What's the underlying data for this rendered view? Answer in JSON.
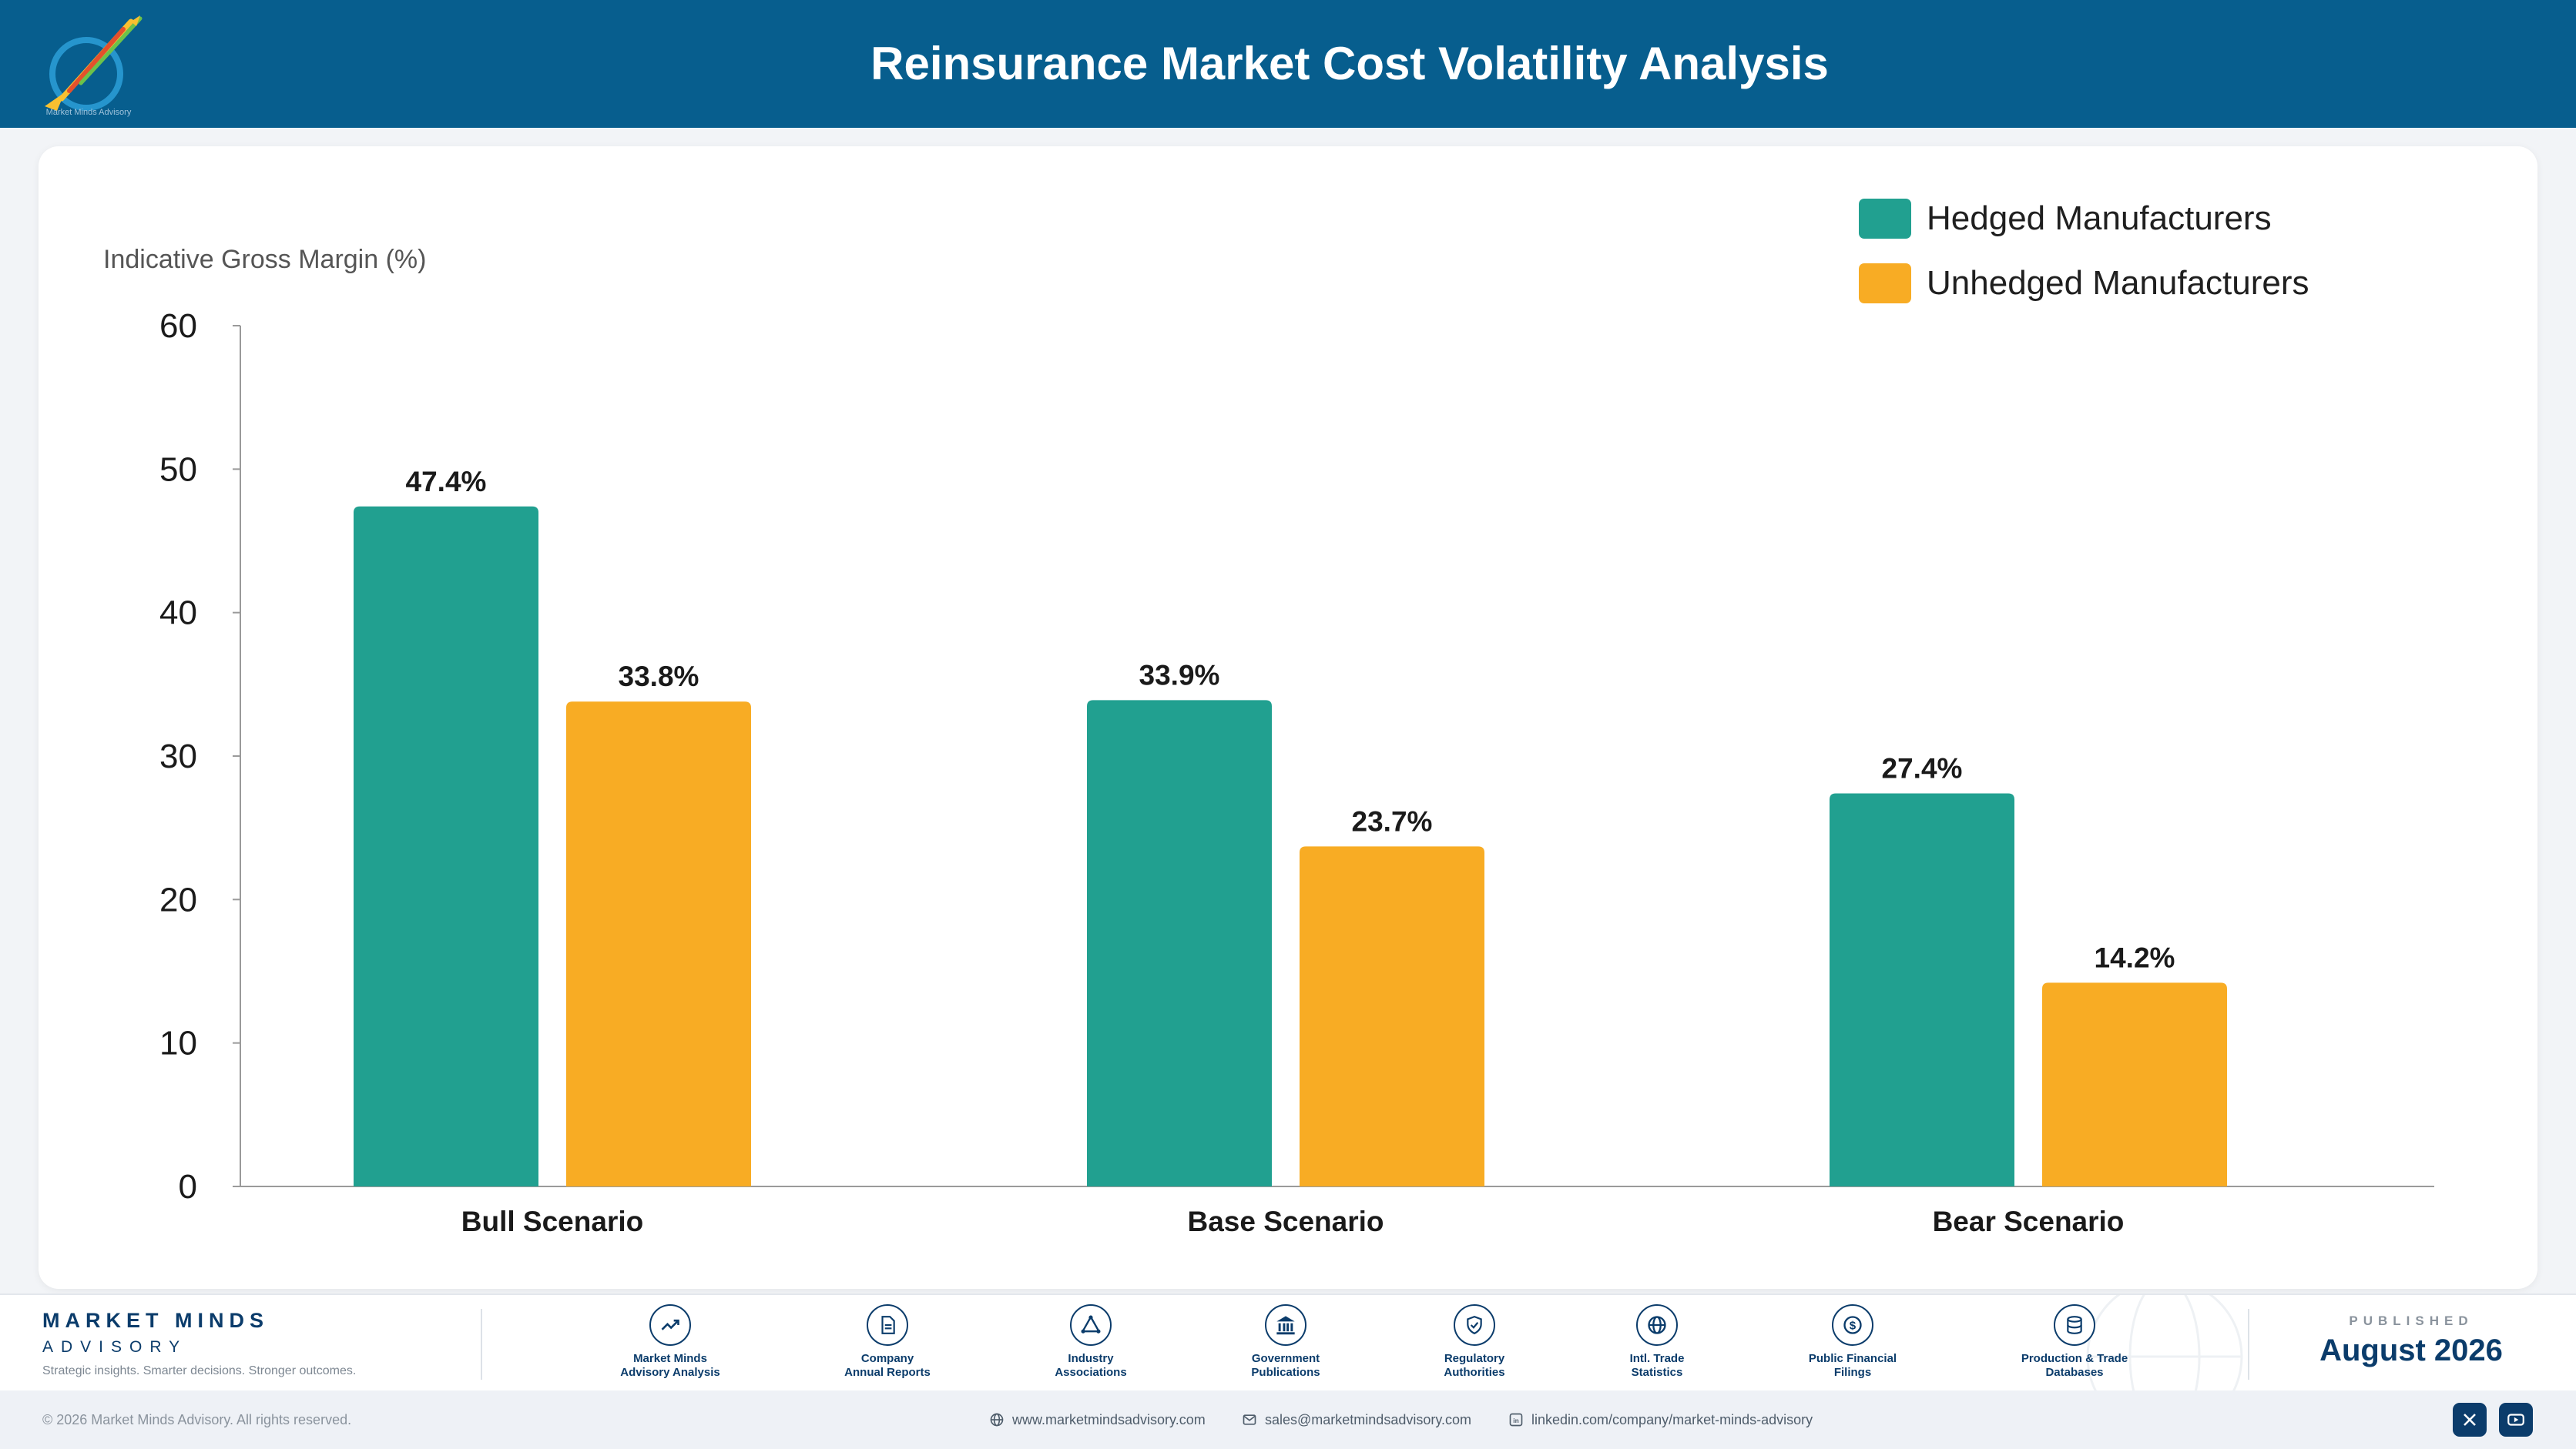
{
  "header": {
    "title": "Reinsurance Market Cost Volatility Analysis",
    "logo_icon": "market-minds-logo-icon",
    "logo_caption": "Market Minds Advisory"
  },
  "chart_data": {
    "type": "bar",
    "title": "",
    "ylabel": "Indicative Gross Margin (%)",
    "xlabel": "",
    "ylim": [
      0,
      60
    ],
    "yticks": [
      0,
      10,
      20,
      30,
      40,
      50,
      60
    ],
    "categories": [
      "Bull Scenario",
      "Base Scenario",
      "Bear Scenario"
    ],
    "series": [
      {
        "name": "Hedged Manufacturers",
        "color": "#21a090",
        "values": [
          47.4,
          33.9,
          27.4
        ],
        "labels": [
          "47.4%",
          "33.9%",
          "27.4%"
        ]
      },
      {
        "name": "Unhedged Manufacturers",
        "color": "#f8ac24",
        "values": [
          33.8,
          23.7,
          14.2
        ],
        "labels": [
          "33.8%",
          "23.7%",
          "14.2%"
        ]
      }
    ],
    "legend_position": "top-right",
    "grid": false
  },
  "footer": {
    "brand_name": "MARKET MINDS",
    "brand_sub": "ADVISORY",
    "tagline": "Strategic insights. Smarter decisions. Stronger outcomes.",
    "sources": [
      {
        "label": "Market Minds\nAdvisory Analysis",
        "icon": "trend-chart-icon"
      },
      {
        "label": "Company\nAnnual Reports",
        "icon": "document-icon"
      },
      {
        "label": "Industry\nAssociations",
        "icon": "network-icon"
      },
      {
        "label": "Government\nPublications",
        "icon": "government-building-icon"
      },
      {
        "label": "Regulatory\nAuthorities",
        "icon": "shield-check-icon"
      },
      {
        "label": "Intl. Trade\nStatistics",
        "icon": "globe-icon"
      },
      {
        "label": "Public Financial\nFilings",
        "icon": "dollar-coin-icon"
      },
      {
        "label": "Production & Trade\nDatabases",
        "icon": "database-icon"
      }
    ],
    "published_label": "PUBLISHED",
    "published_date": "August 2026"
  },
  "bottom_bar": {
    "copyright": "© 2026 Market Minds Advisory. All rights reserved.",
    "website": "www.marketmindsadvisory.com",
    "email": "sales@marketmindsadvisory.com",
    "linkedin": "linkedin.com/company/market-minds-advisory",
    "social_icons": [
      "x-icon",
      "youtube-icon"
    ]
  }
}
